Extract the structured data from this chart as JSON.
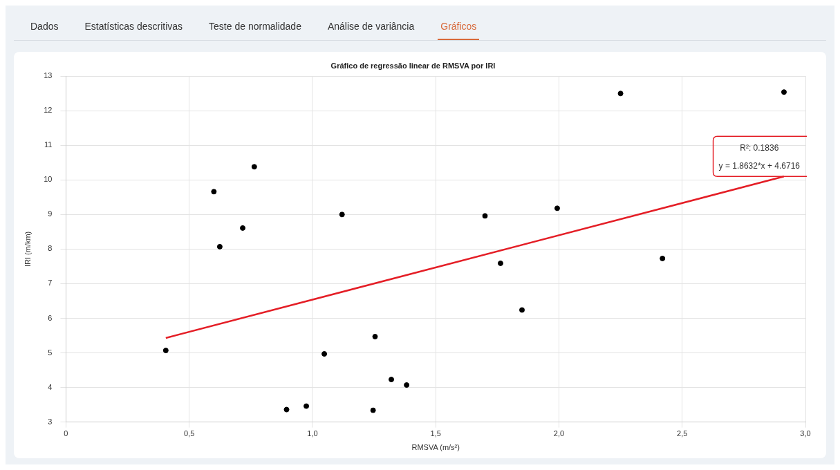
{
  "chart_data": {
    "type": "scatter",
    "title": "Gráfico de regressão linear de RMSVA por IRI",
    "xlabel": "RMSVA (m/s²)",
    "ylabel": "IRI (m/km)",
    "annotations": [
      "Dados",
      "Estatísticas descritivas",
      "Teste de normalidade",
      "Análise de variância",
      "Gráficos",
      {
        "text": "R²: 0.1836",
        "x": 2.91,
        "y": 10.1
      },
      {
        "text": "y = 1.8632*x + 4.6716",
        "x": 2.91,
        "y": 10.1
      }
    ],
    "xlim": [
      0,
      3
    ],
    "xticks": [
      0,
      {
        "value": 0.5,
        "label": "0,5"
      },
      {
        "value": 1,
        "label": "1,0"
      },
      {
        "value": 1.5,
        "label": "1,5"
      },
      {
        "value": 2,
        "label": "2,0"
      },
      {
        "value": 2.5,
        "label": "2,5"
      },
      {
        "value": 3,
        "label": "3,0"
      }
    ],
    "ylim": [
      3,
      13
    ],
    "yticks": [
      3,
      4,
      5,
      6,
      7,
      8,
      9,
      10,
      11,
      12,
      13
    ],
    "grid": true,
    "marker": "circle",
    "series": [
      {
        "type": "scatter",
        "color": "#000000",
        "x": [
          0.405,
          0.6,
          0.624,
          0.717,
          0.764,
          0.895,
          0.975,
          1.048,
          1.12,
          1.254,
          1.246,
          1.32,
          1.382,
          1.7,
          1.763,
          1.85,
          1.993,
          2.25,
          2.42,
          2.913
        ],
        "values": [
          5.07,
          9.66,
          8.07,
          8.61,
          10.38,
          3.36,
          3.46,
          4.97,
          9.0,
          5.47,
          3.34,
          4.23,
          4.07,
          8.96,
          7.59,
          6.24,
          9.18,
          12.5,
          7.73,
          12.54
        ]
      },
      {
        "type": "line",
        "color": "#e41e26",
        "marker": "none",
        "x": [
          0.405,
          2.913
        ],
        "values": [
          5.43,
          10.1
        ]
      }
    ]
  }
}
